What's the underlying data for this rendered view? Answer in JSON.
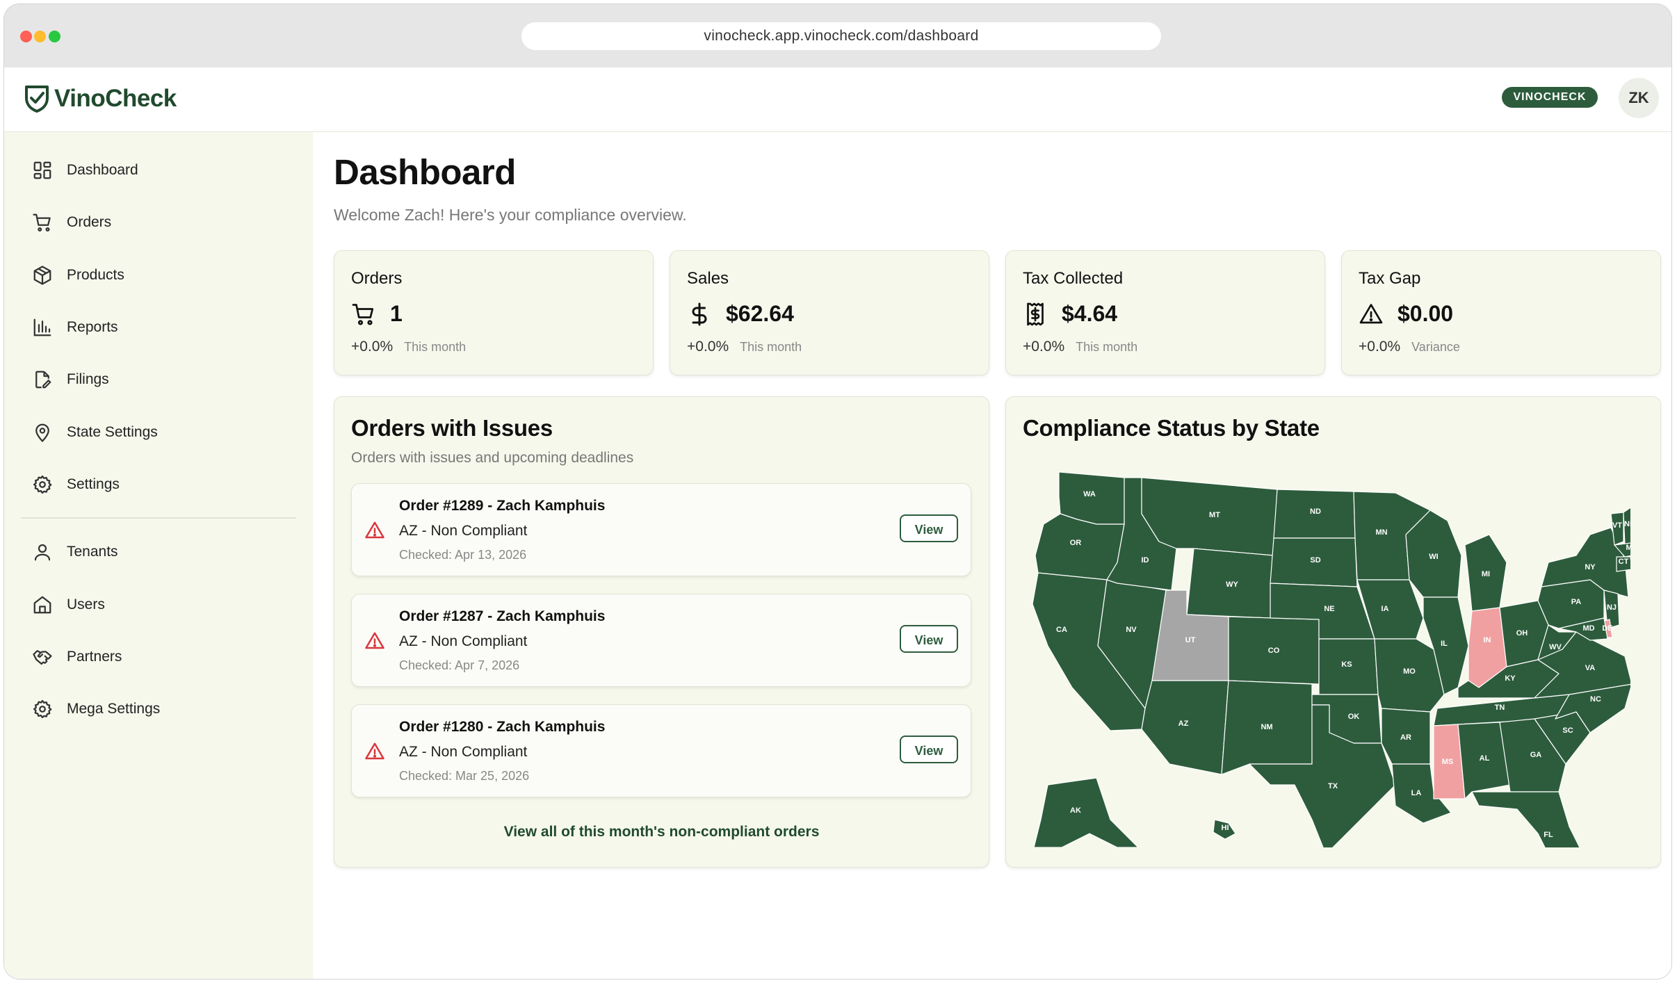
{
  "browser": {
    "url": "vinocheck.app.vinocheck.com/dashboard"
  },
  "header": {
    "logo_text": "VinoCheck",
    "tenant_badge": "VINOCHECK",
    "user_initials": "ZK"
  },
  "sidebar": {
    "items": [
      {
        "label": "Dashboard",
        "icon": "dashboard-icon"
      },
      {
        "label": "Orders",
        "icon": "cart-icon"
      },
      {
        "label": "Products",
        "icon": "box-icon"
      },
      {
        "label": "Reports",
        "icon": "bar-chart-icon"
      },
      {
        "label": "Filings",
        "icon": "file-edit-icon"
      },
      {
        "label": "State Settings",
        "icon": "map-pin-icon"
      },
      {
        "label": "Settings",
        "icon": "gear-icon"
      }
    ],
    "admin_items": [
      {
        "label": "Tenants",
        "icon": "user-icon"
      },
      {
        "label": "Users",
        "icon": "home-icon"
      },
      {
        "label": "Partners",
        "icon": "handshake-icon"
      },
      {
        "label": "Mega Settings",
        "icon": "gear-icon"
      }
    ]
  },
  "page": {
    "title": "Dashboard",
    "subtitle": "Welcome Zach! Here's your compliance overview."
  },
  "stats": [
    {
      "title": "Orders",
      "value": "1",
      "change": "+0.0%",
      "period": "This month",
      "icon": "cart-icon"
    },
    {
      "title": "Sales",
      "value": "$62.64",
      "change": "+0.0%",
      "period": "This month",
      "icon": "dollar-icon"
    },
    {
      "title": "Tax Collected",
      "value": "$4.64",
      "change": "+0.0%",
      "period": "This month",
      "icon": "receipt-icon"
    },
    {
      "title": "Tax Gap",
      "value": "$0.00",
      "change": "+0.0%",
      "period": "Variance",
      "icon": "warning-icon"
    }
  ],
  "issues": {
    "title": "Orders with Issues",
    "subtitle": "Orders with issues and upcoming deadlines",
    "view_all": "View all of this month's non-compliant orders",
    "button_label": "View",
    "items": [
      {
        "title": "Order #1289 - Zach Kamphuis",
        "status": "AZ - Non Compliant",
        "checked": "Checked: Apr 13, 2026"
      },
      {
        "title": "Order #1287 - Zach Kamphuis",
        "status": "AZ - Non Compliant",
        "checked": "Checked: Apr 7, 2026"
      },
      {
        "title": "Order #1280 - Zach Kamphuis",
        "status": "AZ - Non Compliant",
        "checked": "Checked: Mar 25, 2026"
      }
    ]
  },
  "compliance_map": {
    "title": "Compliance Status by State",
    "colors": {
      "compliant": "#2d5c3d",
      "non_compliant": "#f0a0a0",
      "not_configured": "#a6a6a6"
    },
    "states": {
      "WA": "compliant",
      "OR": "compliant",
      "CA": "compliant",
      "NV": "compliant",
      "ID": "compliant",
      "MT": "compliant",
      "WY": "compliant",
      "UT": "not_configured",
      "AZ": "compliant",
      "CO": "compliant",
      "NM": "compliant",
      "ND": "compliant",
      "SD": "compliant",
      "NE": "compliant",
      "KS": "compliant",
      "OK": "compliant",
      "TX": "compliant",
      "MN": "compliant",
      "IA": "compliant",
      "MO": "compliant",
      "AR": "compliant",
      "LA": "compliant",
      "WI": "compliant",
      "IL": "compliant",
      "MI": "compliant",
      "IN": "non_compliant",
      "OH": "compliant",
      "KY": "compliant",
      "TN": "compliant",
      "MS": "non_compliant",
      "AL": "compliant",
      "GA": "compliant",
      "FL": "compliant",
      "SC": "compliant",
      "NC": "compliant",
      "VA": "compliant",
      "WV": "compliant",
      "PA": "compliant",
      "NY": "compliant",
      "VT": "compliant",
      "NH": "compliant",
      "ME": "compliant",
      "MA": "compliant",
      "RI": "compliant",
      "CT": "compliant",
      "NJ": "compliant",
      "DE": "non_compliant",
      "MD": "compliant",
      "AK": "compliant",
      "HI": "compliant"
    }
  }
}
